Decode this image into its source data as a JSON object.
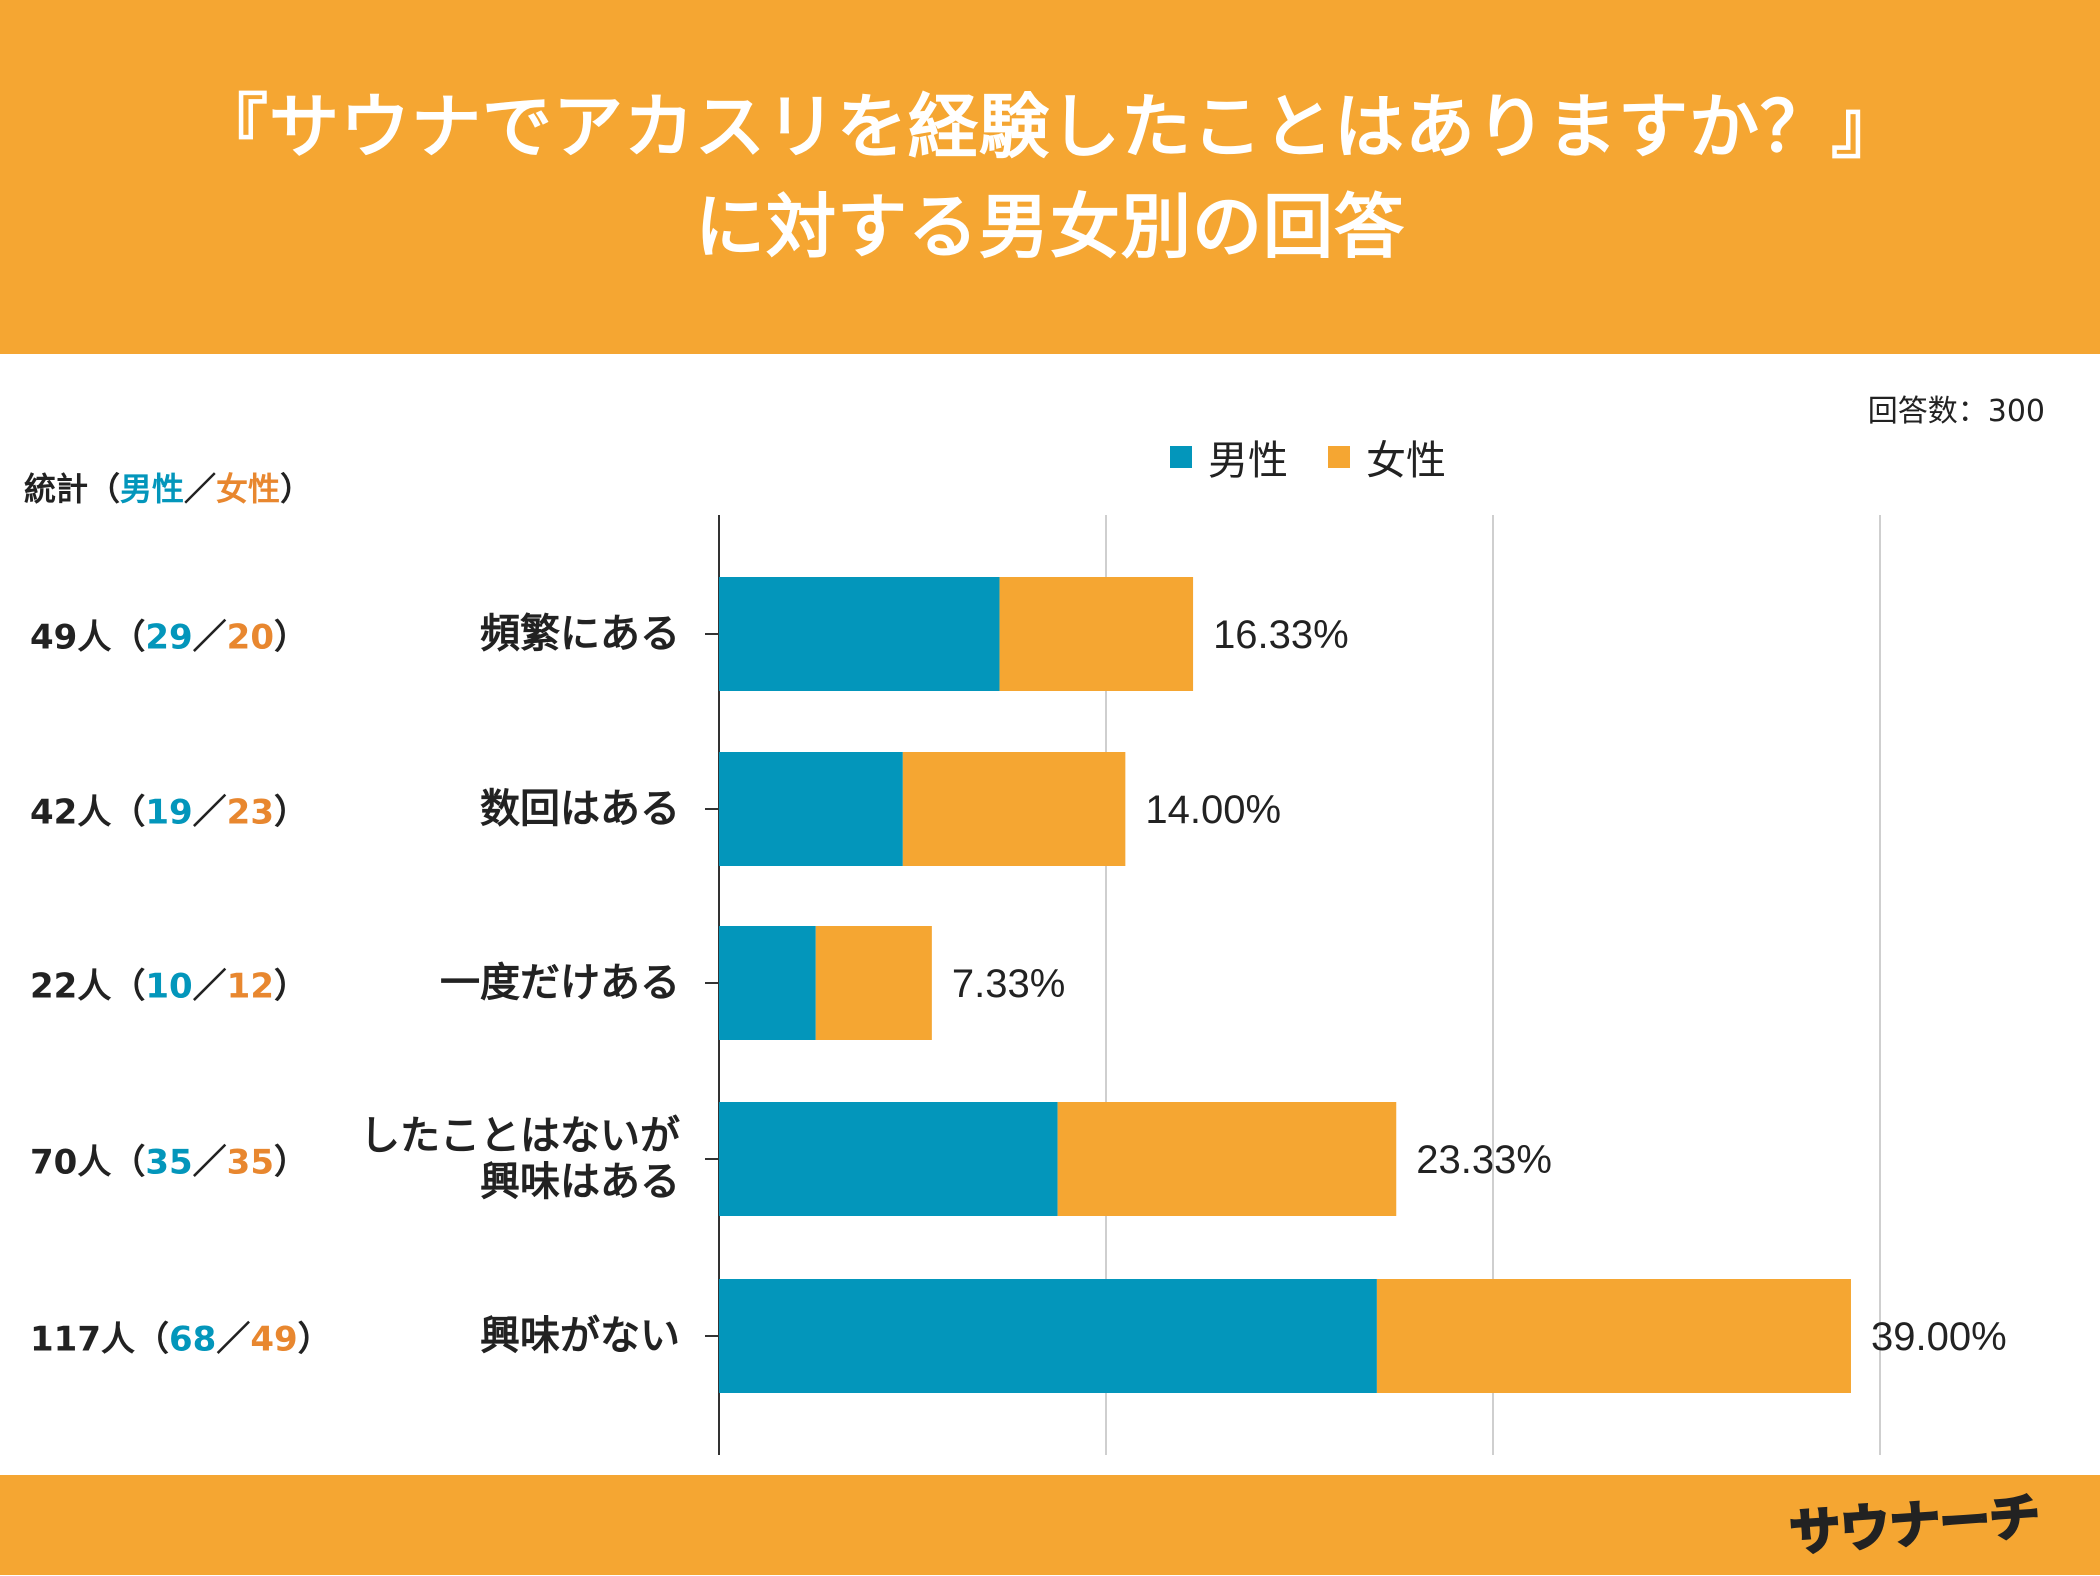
{
  "header": {
    "title_line1": "『サウナでアカスリを経験したことはありますか？』",
    "title_line2": "に対する男女別の回答"
  },
  "respondents": "回答数：300",
  "stats": {
    "heading_prefix": "統計（",
    "heading_male": "男性",
    "heading_slash": "／",
    "heading_female": "女性",
    "heading_suffix": "）",
    "rows": [
      {
        "total": "49人（",
        "male": "29",
        "slash": "／",
        "female": "20",
        "close": "）"
      },
      {
        "total": "42人（",
        "male": "19",
        "slash": "／",
        "female": "23",
        "close": "）"
      },
      {
        "total": "22人（",
        "male": "10",
        "slash": "／",
        "female": "12",
        "close": "）"
      },
      {
        "total": "70人（",
        "male": "35",
        "slash": "／",
        "female": "35",
        "close": "）"
      },
      {
        "total": "117人（",
        "male": "68",
        "slash": "／",
        "female": "49",
        "close": "）"
      }
    ]
  },
  "legend": {
    "male": "男性",
    "female": "女性"
  },
  "colors": {
    "male": "#0396BB",
    "female": "#F5A632",
    "header": "#F5A632",
    "male_text": "#0396BB",
    "female_text": "#E8872F"
  },
  "logo_text": "サウナーチ",
  "chart_data": {
    "type": "bar",
    "orientation": "horizontal",
    "stacked": true,
    "title": "『サウナでアカスリを経験したことはありますか？』に対する男女別の回答",
    "categories": [
      [
        "頻繁にある"
      ],
      [
        "数回はある"
      ],
      [
        "一度だけある"
      ],
      [
        "したことはないが",
        "興味はある"
      ],
      [
        "興味がない"
      ]
    ],
    "series": [
      {
        "name": "男性",
        "values": [
          29,
          19,
          10,
          35,
          68
        ]
      },
      {
        "name": "女性",
        "values": [
          20,
          23,
          12,
          35,
          49
        ]
      }
    ],
    "totals": [
      49,
      42,
      22,
      70,
      117
    ],
    "data_labels": [
      "16.33%",
      "14.00%",
      "7.33%",
      "23.33%",
      "39.00%"
    ],
    "xlim": [
      0,
      120
    ],
    "grid": true,
    "legend_position": "top"
  }
}
